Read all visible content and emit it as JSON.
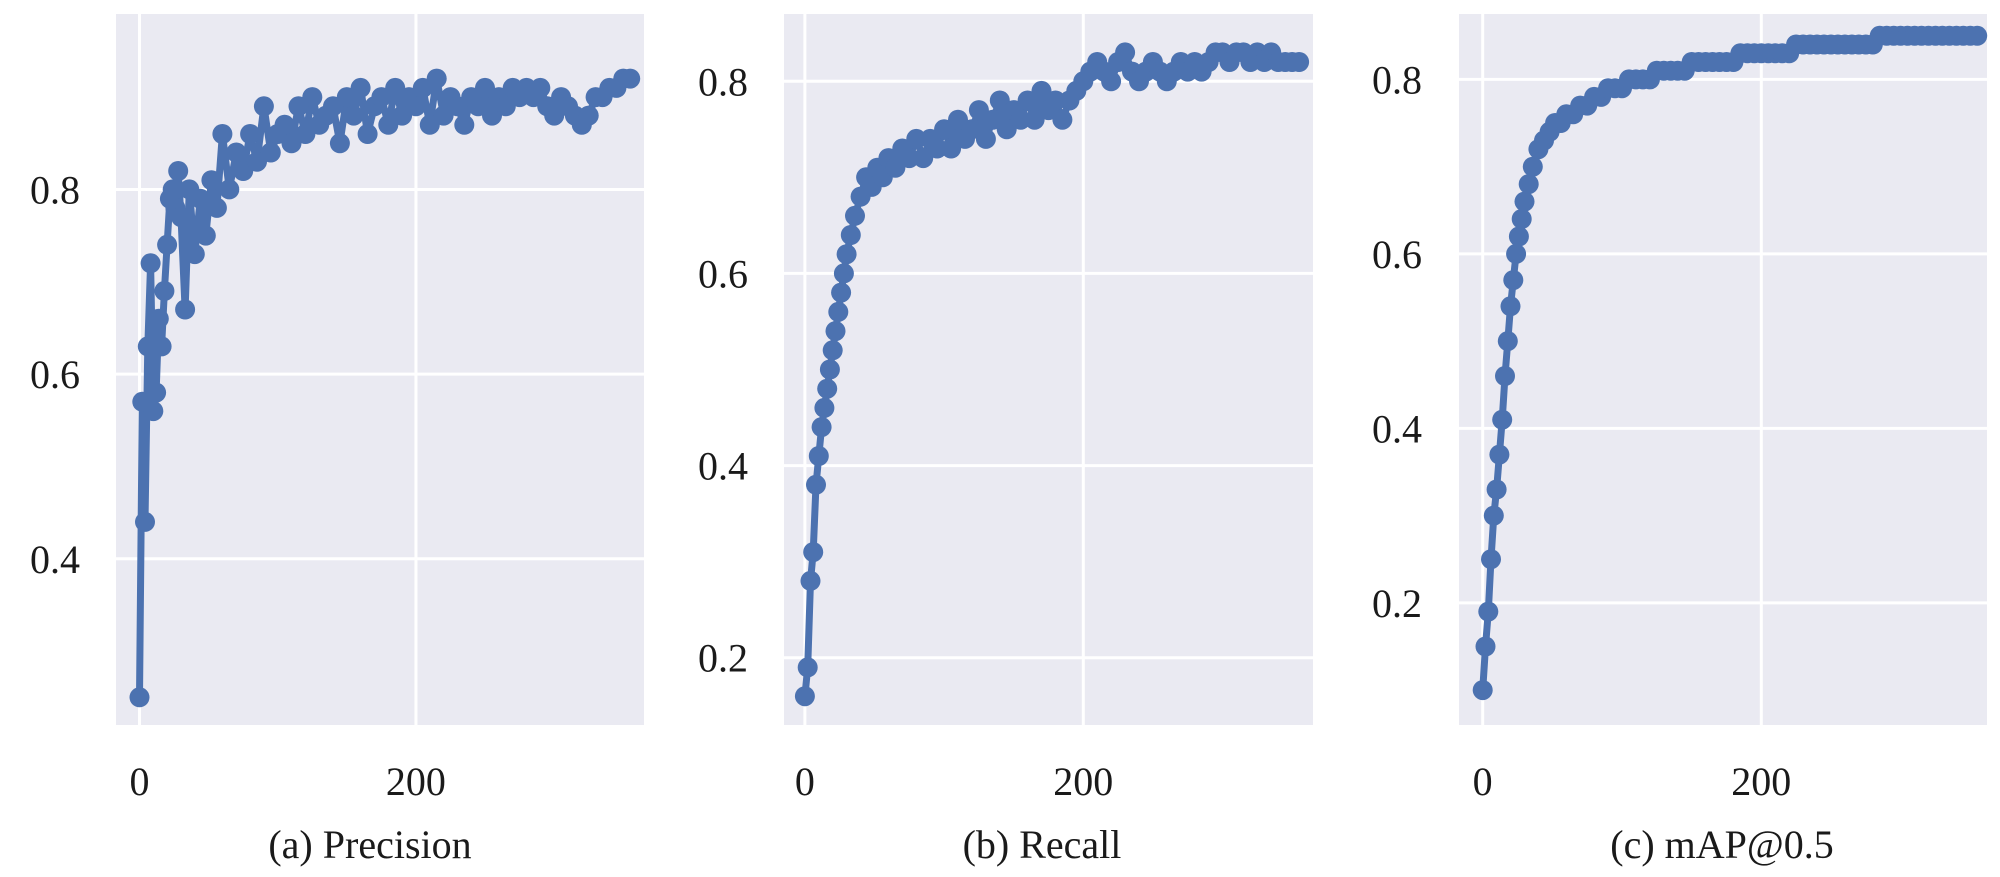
{
  "chart_data": [
    {
      "type": "line",
      "caption": "(a) Precision",
      "x_ticks": [
        0,
        200
      ],
      "y_ticks": [
        0.4,
        0.6,
        0.8
      ],
      "xlim": [
        -17,
        365
      ],
      "ylim": [
        0.22,
        0.99
      ],
      "grid": true,
      "series": [
        {
          "x": [
            0,
            2,
            4,
            6,
            8,
            10,
            12,
            14,
            16,
            18,
            20,
            22,
            24,
            26,
            28,
            30,
            33,
            36,
            40,
            44,
            48,
            52,
            56,
            60,
            65,
            70,
            75,
            80,
            85,
            90,
            95,
            100,
            105,
            110,
            115,
            120,
            125,
            130,
            135,
            140,
            145,
            150,
            155,
            160,
            165,
            170,
            175,
            180,
            185,
            190,
            195,
            200,
            205,
            210,
            215,
            220,
            225,
            230,
            235,
            240,
            245,
            250,
            255,
            260,
            265,
            270,
            275,
            280,
            285,
            290,
            295,
            300,
            305,
            310,
            315,
            320,
            325,
            330,
            335,
            340,
            345,
            350,
            355
          ],
          "y": [
            0.25,
            0.57,
            0.44,
            0.63,
            0.72,
            0.56,
            0.58,
            0.66,
            0.63,
            0.69,
            0.74,
            0.79,
            0.8,
            0.78,
            0.82,
            0.77,
            0.67,
            0.8,
            0.73,
            0.79,
            0.75,
            0.81,
            0.78,
            0.86,
            0.8,
            0.84,
            0.82,
            0.86,
            0.83,
            0.89,
            0.84,
            0.86,
            0.87,
            0.85,
            0.89,
            0.86,
            0.9,
            0.87,
            0.88,
            0.89,
            0.85,
            0.9,
            0.88,
            0.91,
            0.86,
            0.89,
            0.9,
            0.87,
            0.91,
            0.88,
            0.9,
            0.89,
            0.91,
            0.87,
            0.92,
            0.88,
            0.9,
            0.89,
            0.87,
            0.9,
            0.89,
            0.91,
            0.88,
            0.9,
            0.89,
            0.91,
            0.9,
            0.91,
            0.9,
            0.91,
            0.89,
            0.88,
            0.9,
            0.89,
            0.88,
            0.87,
            0.88,
            0.9,
            0.9,
            0.91,
            0.91,
            0.92,
            0.92
          ]
        }
      ]
    },
    {
      "type": "line",
      "caption": "(b) Recall",
      "x_ticks": [
        0,
        200
      ],
      "y_ticks": [
        0.2,
        0.4,
        0.6,
        0.8
      ],
      "xlim": [
        -15,
        365
      ],
      "ylim": [
        0.13,
        0.87
      ],
      "grid": true,
      "series": [
        {
          "x": [
            0,
            2,
            4,
            6,
            8,
            10,
            12,
            14,
            16,
            18,
            20,
            22,
            24,
            26,
            28,
            30,
            33,
            36,
            40,
            44,
            48,
            52,
            56,
            60,
            65,
            70,
            75,
            80,
            85,
            90,
            95,
            100,
            105,
            110,
            115,
            120,
            125,
            130,
            135,
            140,
            145,
            150,
            155,
            160,
            165,
            170,
            175,
            180,
            185,
            190,
            195,
            200,
            205,
            210,
            215,
            220,
            225,
            230,
            235,
            240,
            245,
            250,
            255,
            260,
            265,
            270,
            275,
            280,
            285,
            290,
            295,
            300,
            305,
            310,
            315,
            320,
            325,
            330,
            335,
            340,
            345,
            350,
            355
          ],
          "y": [
            0.16,
            0.19,
            0.28,
            0.31,
            0.38,
            0.41,
            0.44,
            0.46,
            0.48,
            0.5,
            0.52,
            0.54,
            0.56,
            0.58,
            0.6,
            0.62,
            0.64,
            0.66,
            0.68,
            0.7,
            0.69,
            0.71,
            0.7,
            0.72,
            0.71,
            0.73,
            0.72,
            0.74,
            0.72,
            0.74,
            0.73,
            0.75,
            0.73,
            0.76,
            0.74,
            0.75,
            0.77,
            0.74,
            0.76,
            0.78,
            0.75,
            0.77,
            0.76,
            0.78,
            0.76,
            0.79,
            0.77,
            0.78,
            0.76,
            0.78,
            0.79,
            0.8,
            0.81,
            0.82,
            0.81,
            0.8,
            0.82,
            0.83,
            0.81,
            0.8,
            0.81,
            0.82,
            0.81,
            0.8,
            0.81,
            0.82,
            0.81,
            0.82,
            0.81,
            0.82,
            0.83,
            0.83,
            0.82,
            0.83,
            0.83,
            0.82,
            0.83,
            0.82,
            0.83,
            0.82,
            0.82,
            0.82,
            0.82
          ]
        }
      ]
    },
    {
      "type": "line",
      "caption": "(c) mAP@0.5",
      "x_ticks": [
        0,
        200
      ],
      "y_ticks": [
        0.2,
        0.4,
        0.6,
        0.8
      ],
      "xlim": [
        -17,
        362
      ],
      "ylim": [
        0.06,
        0.875
      ],
      "grid": true,
      "series": [
        {
          "x": [
            0,
            2,
            4,
            6,
            8,
            10,
            12,
            14,
            16,
            18,
            20,
            22,
            24,
            26,
            28,
            30,
            33,
            36,
            40,
            44,
            48,
            52,
            56,
            60,
            65,
            70,
            75,
            80,
            85,
            90,
            95,
            100,
            105,
            110,
            115,
            120,
            125,
            130,
            135,
            140,
            145,
            150,
            155,
            160,
            165,
            170,
            175,
            180,
            185,
            190,
            195,
            200,
            205,
            210,
            215,
            220,
            225,
            230,
            235,
            240,
            245,
            250,
            255,
            260,
            265,
            270,
            275,
            280,
            285,
            290,
            295,
            300,
            305,
            310,
            315,
            320,
            325,
            330,
            335,
            340,
            345,
            350,
            355
          ],
          "y": [
            0.1,
            0.15,
            0.19,
            0.25,
            0.3,
            0.33,
            0.37,
            0.41,
            0.46,
            0.5,
            0.54,
            0.57,
            0.6,
            0.62,
            0.64,
            0.66,
            0.68,
            0.7,
            0.72,
            0.73,
            0.74,
            0.75,
            0.75,
            0.76,
            0.76,
            0.77,
            0.77,
            0.78,
            0.78,
            0.79,
            0.79,
            0.79,
            0.8,
            0.8,
            0.8,
            0.8,
            0.81,
            0.81,
            0.81,
            0.81,
            0.81,
            0.82,
            0.82,
            0.82,
            0.82,
            0.82,
            0.82,
            0.82,
            0.83,
            0.83,
            0.83,
            0.83,
            0.83,
            0.83,
            0.83,
            0.83,
            0.84,
            0.84,
            0.84,
            0.84,
            0.84,
            0.84,
            0.84,
            0.84,
            0.84,
            0.84,
            0.84,
            0.84,
            0.85,
            0.85,
            0.85,
            0.85,
            0.85,
            0.85,
            0.85,
            0.85,
            0.85,
            0.85,
            0.85,
            0.85,
            0.85,
            0.85,
            0.85
          ]
        }
      ]
    }
  ],
  "colors": {
    "plot_background": "#eaeaf2",
    "grid": "#ffffff",
    "series": "#4c72b0",
    "text": "#1a1a1a"
  }
}
